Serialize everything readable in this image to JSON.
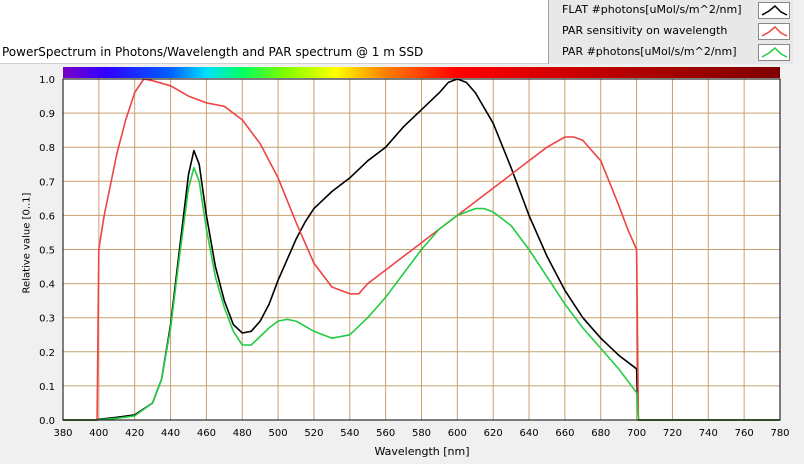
{
  "chart_data": {
    "type": "line",
    "title": "PowerSpectrum in Photons/Wavelength and PAR spectrum @ 1 m SSD",
    "xlabel": "Wavelength [nm]",
    "ylabel": "Relative value [0..1]",
    "xlim": [
      380,
      780
    ],
    "ylim": [
      0.0,
      1.0
    ],
    "x_ticks": [
      "380",
      "400",
      "420",
      "440",
      "460",
      "480",
      "500",
      "520",
      "540",
      "560",
      "580",
      "600",
      "620",
      "640",
      "660",
      "680",
      "700",
      "720",
      "740",
      "760",
      "780"
    ],
    "y_ticks": [
      "0.0",
      "0.1",
      "0.2",
      "0.3",
      "0.4",
      "0.5",
      "0.6",
      "0.7",
      "0.8",
      "0.9",
      "1.0"
    ],
    "grid": true,
    "legend_position": "top-right",
    "series": [
      {
        "name": "FLAT #photons[uMol/s/m^2/nm]",
        "color": "#000000",
        "points": [
          [
            380,
            0.0
          ],
          [
            399,
            0.0
          ],
          [
            400,
            0.002
          ],
          [
            410,
            0.008
          ],
          [
            420,
            0.015
          ],
          [
            430,
            0.05
          ],
          [
            435,
            0.12
          ],
          [
            440,
            0.28
          ],
          [
            445,
            0.5
          ],
          [
            450,
            0.72
          ],
          [
            453,
            0.79
          ],
          [
            456,
            0.75
          ],
          [
            460,
            0.6
          ],
          [
            465,
            0.45
          ],
          [
            470,
            0.35
          ],
          [
            475,
            0.28
          ],
          [
            480,
            0.255
          ],
          [
            485,
            0.26
          ],
          [
            490,
            0.29
          ],
          [
            495,
            0.34
          ],
          [
            500,
            0.41
          ],
          [
            505,
            0.47
          ],
          [
            510,
            0.53
          ],
          [
            515,
            0.58
          ],
          [
            520,
            0.62
          ],
          [
            530,
            0.67
          ],
          [
            540,
            0.71
          ],
          [
            550,
            0.76
          ],
          [
            560,
            0.8
          ],
          [
            570,
            0.86
          ],
          [
            580,
            0.91
          ],
          [
            590,
            0.96
          ],
          [
            595,
            0.99
          ],
          [
            600,
            1.0
          ],
          [
            605,
            0.99
          ],
          [
            610,
            0.96
          ],
          [
            620,
            0.87
          ],
          [
            630,
            0.74
          ],
          [
            640,
            0.6
          ],
          [
            650,
            0.48
          ],
          [
            660,
            0.38
          ],
          [
            670,
            0.3
          ],
          [
            680,
            0.24
          ],
          [
            690,
            0.19
          ],
          [
            700,
            0.15
          ],
          [
            701,
            0.0
          ],
          [
            780,
            0.0
          ]
        ]
      },
      {
        "name": "PAR sensitivity on wavelength",
        "color": "#ee4444",
        "points": [
          [
            380,
            0.0
          ],
          [
            399,
            0.0
          ],
          [
            400,
            0.5
          ],
          [
            403,
            0.6
          ],
          [
            410,
            0.78
          ],
          [
            415,
            0.88
          ],
          [
            420,
            0.96
          ],
          [
            425,
            1.0
          ],
          [
            430,
            0.995
          ],
          [
            440,
            0.98
          ],
          [
            450,
            0.95
          ],
          [
            460,
            0.93
          ],
          [
            470,
            0.92
          ],
          [
            480,
            0.88
          ],
          [
            490,
            0.81
          ],
          [
            500,
            0.71
          ],
          [
            510,
            0.58
          ],
          [
            520,
            0.46
          ],
          [
            530,
            0.39
          ],
          [
            540,
            0.37
          ],
          [
            545,
            0.37
          ],
          [
            550,
            0.4
          ],
          [
            560,
            0.44
          ],
          [
            570,
            0.48
          ],
          [
            580,
            0.52
          ],
          [
            590,
            0.56
          ],
          [
            600,
            0.6
          ],
          [
            610,
            0.64
          ],
          [
            620,
            0.68
          ],
          [
            630,
            0.72
          ],
          [
            640,
            0.76
          ],
          [
            650,
            0.8
          ],
          [
            660,
            0.83
          ],
          [
            665,
            0.83
          ],
          [
            670,
            0.82
          ],
          [
            680,
            0.76
          ],
          [
            690,
            0.63
          ],
          [
            695,
            0.56
          ],
          [
            700,
            0.5
          ],
          [
            701,
            0.0
          ],
          [
            780,
            0.0
          ]
        ]
      },
      {
        "name": "PAR #photons[uMol/s/m^2/nm]",
        "color": "#22cc44",
        "points": [
          [
            380,
            0.0
          ],
          [
            399,
            0.0
          ],
          [
            400,
            0.001
          ],
          [
            410,
            0.005
          ],
          [
            420,
            0.012
          ],
          [
            430,
            0.05
          ],
          [
            435,
            0.12
          ],
          [
            440,
            0.27
          ],
          [
            445,
            0.48
          ],
          [
            450,
            0.68
          ],
          [
            453,
            0.74
          ],
          [
            456,
            0.7
          ],
          [
            460,
            0.56
          ],
          [
            465,
            0.42
          ],
          [
            470,
            0.33
          ],
          [
            475,
            0.26
          ],
          [
            480,
            0.22
          ],
          [
            485,
            0.22
          ],
          [
            490,
            0.245
          ],
          [
            495,
            0.27
          ],
          [
            500,
            0.29
          ],
          [
            505,
            0.295
          ],
          [
            510,
            0.29
          ],
          [
            520,
            0.26
          ],
          [
            530,
            0.24
          ],
          [
            540,
            0.25
          ],
          [
            550,
            0.3
          ],
          [
            560,
            0.36
          ],
          [
            570,
            0.43
          ],
          [
            580,
            0.5
          ],
          [
            590,
            0.56
          ],
          [
            600,
            0.6
          ],
          [
            610,
            0.62
          ],
          [
            615,
            0.62
          ],
          [
            620,
            0.61
          ],
          [
            630,
            0.57
          ],
          [
            640,
            0.5
          ],
          [
            650,
            0.42
          ],
          [
            660,
            0.34
          ],
          [
            670,
            0.27
          ],
          [
            680,
            0.21
          ],
          [
            690,
            0.15
          ],
          [
            700,
            0.08
          ],
          [
            701,
            0.0
          ],
          [
            780,
            0.0
          ]
        ]
      }
    ]
  }
}
